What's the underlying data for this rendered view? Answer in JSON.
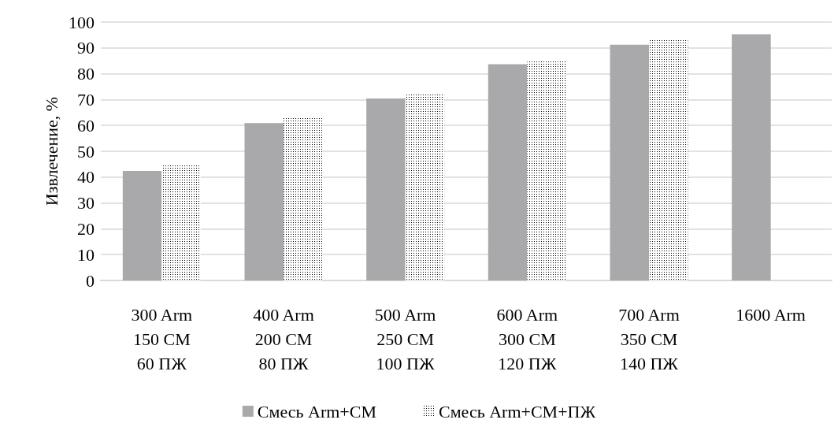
{
  "chart_data": {
    "type": "bar",
    "ylabel": "Извлечение, %",
    "categories": [
      "300 Arm\n150 СМ\n60 ПЖ",
      "400 Arm\n200 СМ\n80 ПЖ",
      "500 Arm\n250 СМ\n100 ПЖ",
      "600 Arm\n300 СМ\n120 ПЖ",
      "700 Arm\n350 СМ\n140 ПЖ",
      "1600 Arm"
    ],
    "series": [
      {
        "name": "Смесь Arm+СМ",
        "color": "#a9a8ab",
        "values": [
          42.4,
          60.9,
          70.4,
          83.7,
          91.2,
          95.3
        ]
      },
      {
        "name": "Смесь Arm+СМ+ПЖ",
        "color": "#000000",
        "values": [
          44.9,
          63.2,
          72,
          84.8,
          93,
          null
        ]
      }
    ],
    "ylim": [
      0,
      100
    ],
    "yticks": [
      0,
      10,
      20,
      30,
      40,
      50,
      60,
      70,
      80,
      90,
      100
    ],
    "grid": "y",
    "legend": "bottom"
  }
}
